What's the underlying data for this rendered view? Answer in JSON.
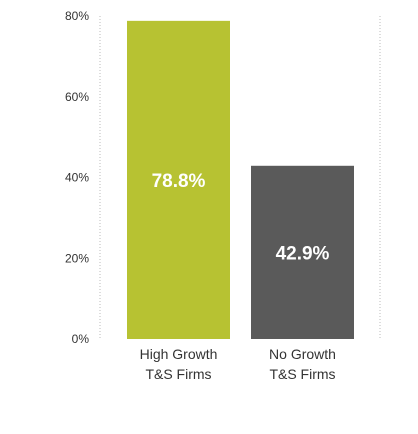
{
  "chart_data": {
    "type": "bar",
    "categories": [
      [
        "High Growth",
        "T&S Firms"
      ],
      [
        "No Growth",
        "T&S Firms"
      ]
    ],
    "values": [
      78.8,
      42.9
    ],
    "value_labels": [
      "78.8%",
      "42.9%"
    ],
    "colors": [
      "#b7c232",
      "#5a5a5a"
    ],
    "ylim": [
      0,
      80
    ],
    "yticks": [
      0,
      20,
      40,
      60,
      80
    ],
    "ytick_labels": [
      "0%",
      "20%",
      "40%",
      "60%",
      "80%"
    ],
    "grid": false,
    "legend": "none"
  }
}
